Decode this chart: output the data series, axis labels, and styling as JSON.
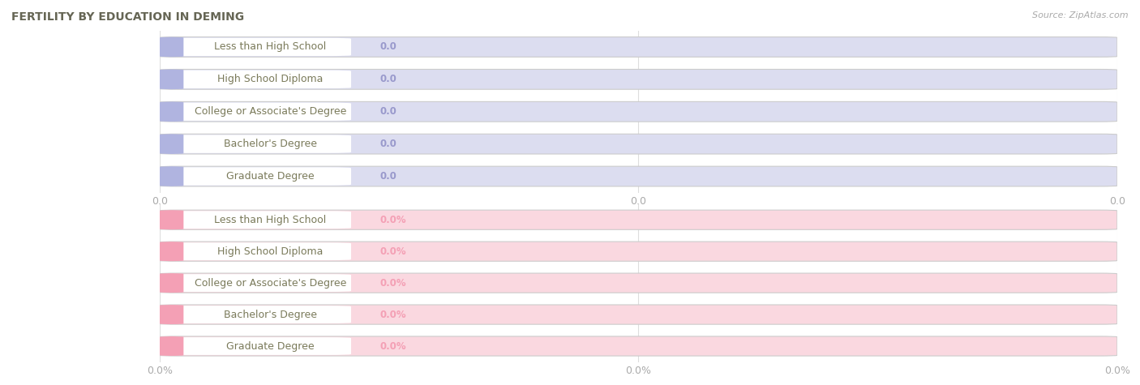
{
  "title": "FERTILITY BY EDUCATION IN DEMING",
  "source": "Source: ZipAtlas.com",
  "categories": [
    "Less than High School",
    "High School Diploma",
    "College or Associate's Degree",
    "Bachelor's Degree",
    "Graduate Degree"
  ],
  "values_top": [
    0.0,
    0.0,
    0.0,
    0.0,
    0.0
  ],
  "values_bottom": [
    0.0,
    0.0,
    0.0,
    0.0,
    0.0
  ],
  "bar_color_top": "#b0b4e0",
  "bar_bg_color_top": "#dcddf0",
  "bar_color_bottom": "#f4a0b5",
  "bar_bg_color_bottom": "#fad8e0",
  "label_bg_color": "#ffffff",
  "label_text_color": "#7a7a5a",
  "value_color_top": "#9999cc",
  "value_color_bottom": "#f4a0b5",
  "tick_color": "#aaaaaa",
  "title_color": "#666655",
  "source_color": "#aaaaaa",
  "background_color": "#ffffff",
  "grid_color": "#dddddd",
  "title_fontsize": 10,
  "label_fontsize": 9,
  "value_fontsize": 8.5,
  "tick_fontsize": 9,
  "source_fontsize": 8
}
